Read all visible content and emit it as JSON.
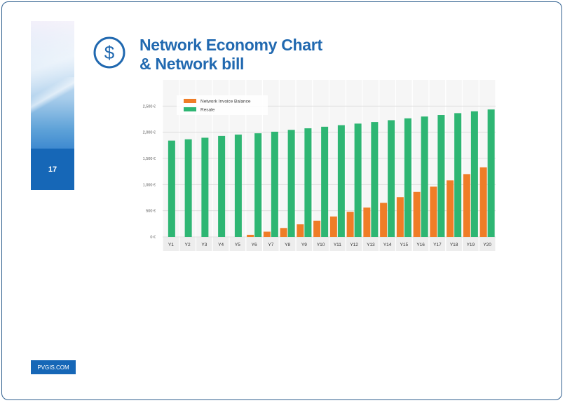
{
  "page": {
    "number": "17",
    "title_line1": "Network Economy Chart",
    "title_line2": "& Network bill",
    "footer": "PVGIS.COM",
    "icon": "dollar-circle-icon",
    "accent_color": "#1667b7",
    "title_color": "#2169b0"
  },
  "chart_data": {
    "type": "bar",
    "title": "",
    "xlabel": "",
    "ylabel": "",
    "categories": [
      "Y1",
      "Y2",
      "Y3",
      "Y4",
      "Y5",
      "Y6",
      "Y7",
      "Y8",
      "Y9",
      "Y10",
      "Y11",
      "Y12",
      "Y13",
      "Y14",
      "Y15",
      "Y16",
      "Y17",
      "Y18",
      "Y19",
      "Y20"
    ],
    "ylim": [
      0,
      3000
    ],
    "yticks": [
      0,
      500,
      1000,
      1500,
      2000,
      2500
    ],
    "ytick_labels": [
      "0 €",
      "500 €",
      "1,000 €",
      "1,500 €",
      "2,000 €",
      "2,500 €"
    ],
    "legend_position": "top-left",
    "grid": true,
    "series": [
      {
        "name": "Network Invoice Balance",
        "color": "#ef7d27",
        "values": [
          0,
          0,
          0,
          0,
          0,
          40,
          100,
          170,
          240,
          310,
          390,
          480,
          560,
          650,
          760,
          860,
          960,
          1080,
          1200,
          1330
        ]
      },
      {
        "name": "Resale",
        "color": "#2eb673",
        "values": [
          1840,
          1865,
          1895,
          1930,
          1955,
          1980,
          2010,
          2045,
          2075,
          2105,
          2135,
          2165,
          2195,
          2230,
          2265,
          2300,
          2330,
          2365,
          2400,
          2435
        ]
      }
    ]
  }
}
